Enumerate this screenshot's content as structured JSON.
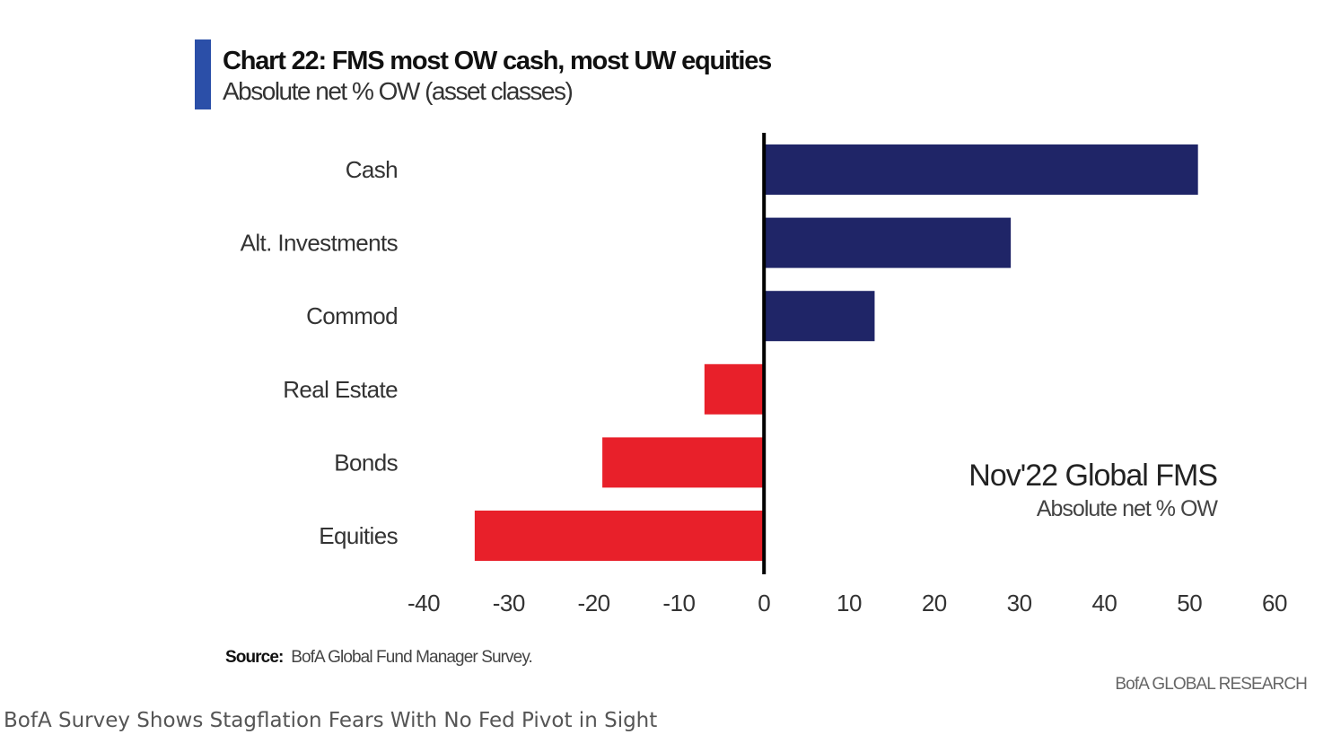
{
  "chart_data": {
    "type": "bar",
    "orientation": "horizontal",
    "title": "Chart 22: FMS most OW cash, most UW equities",
    "subtitle": "Absolute net % OW (asset classes)",
    "categories": [
      "Cash",
      "Alt. Investments",
      "Commod",
      "Real Estate",
      "Bonds",
      "Equities"
    ],
    "values": [
      51,
      29,
      13,
      -7,
      -19,
      -34
    ],
    "xlim": [
      -40,
      60
    ],
    "xticks": [
      -40,
      -30,
      -20,
      -10,
      0,
      10,
      20,
      30,
      40,
      50,
      60
    ],
    "grid": false,
    "colors": {
      "positive": "#1f2567",
      "negative": "#e8202a",
      "zero_line": "#000000"
    },
    "annotation": {
      "title": "Nov'22 Global FMS",
      "subtitle": "Absolute net % OW"
    }
  },
  "source": {
    "label": "Source:",
    "text": "BofA Global Fund Manager Survey."
  },
  "credit": "BofA GLOBAL RESEARCH",
  "caption": "BofA Survey Shows Stagflation Fears With No Fed Pivot in Sight"
}
